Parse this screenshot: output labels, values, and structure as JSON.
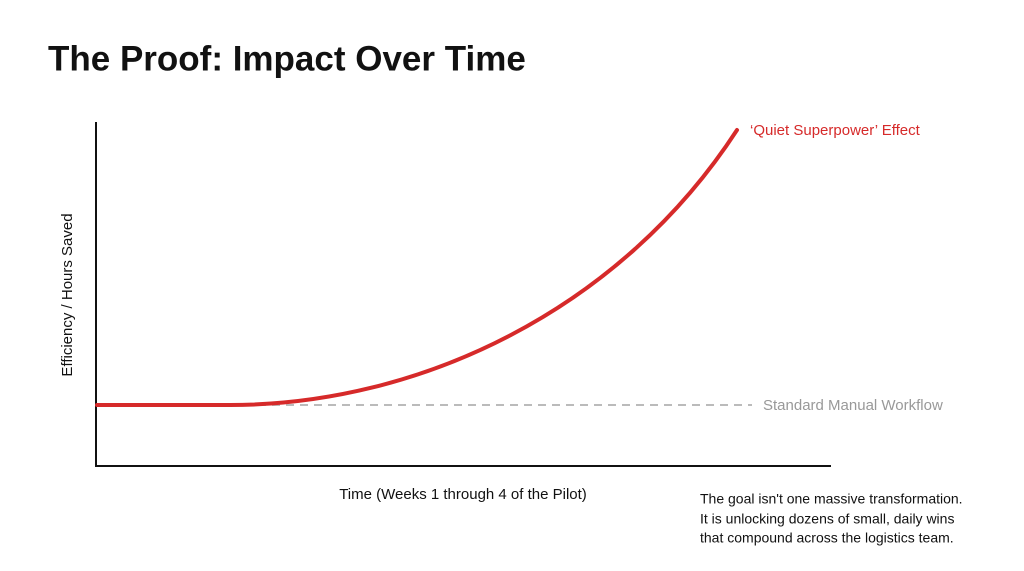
{
  "header": {
    "title": "The Proof: Impact Over Time"
  },
  "diagram": {
    "y_axis_label": "Efficiency / Hours Saved",
    "x_axis_label": "Time (Weeks 1 through 4 of the Pilot)",
    "curve_label": "‘Quiet Superpower’ Effect",
    "baseline_label": "Standard Manual Workflow"
  },
  "note": {
    "lines": [
      "The goal isn't one massive transformation.",
      "It is unlocking dozens of small, daily wins",
      "that compound across the logistics team."
    ]
  }
}
